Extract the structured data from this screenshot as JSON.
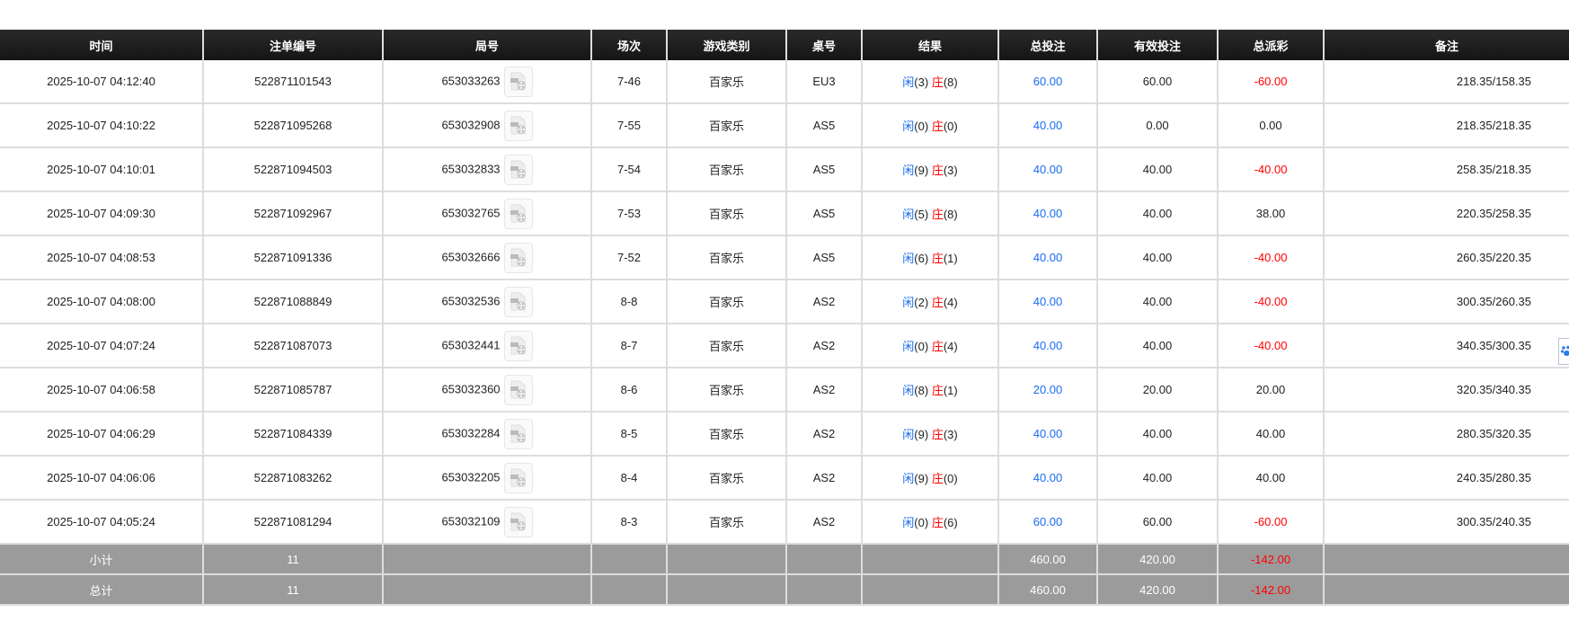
{
  "headers": [
    "时间",
    "注单编号",
    "局号",
    "场次",
    "游戏类别",
    "桌号",
    "结果",
    "总投注",
    "有效投注",
    "总派彩",
    "备注"
  ],
  "result_labels": {
    "player": "闲",
    "banker": "庄"
  },
  "rows": [
    {
      "time": "2025-10-07 04:12:40",
      "bet_id": "522871101543",
      "round": "653033263",
      "shoe": "7-46",
      "game": "百家乐",
      "table": "EU3",
      "player": "(3)",
      "banker": "(8)",
      "total_bet": "60.00",
      "valid_bet": "60.00",
      "payout": "-60.00",
      "payout_neg": true,
      "remark": "218.35/158.35"
    },
    {
      "time": "2025-10-07 04:10:22",
      "bet_id": "522871095268",
      "round": "653032908",
      "shoe": "7-55",
      "game": "百家乐",
      "table": "AS5",
      "player": "(0)",
      "banker": "(0)",
      "total_bet": "40.00",
      "valid_bet": "0.00",
      "payout": "0.00",
      "payout_neg": false,
      "remark": "218.35/218.35"
    },
    {
      "time": "2025-10-07 04:10:01",
      "bet_id": "522871094503",
      "round": "653032833",
      "shoe": "7-54",
      "game": "百家乐",
      "table": "AS5",
      "player": "(9)",
      "banker": "(3)",
      "total_bet": "40.00",
      "valid_bet": "40.00",
      "payout": "-40.00",
      "payout_neg": true,
      "remark": "258.35/218.35"
    },
    {
      "time": "2025-10-07 04:09:30",
      "bet_id": "522871092967",
      "round": "653032765",
      "shoe": "7-53",
      "game": "百家乐",
      "table": "AS5",
      "player": "(5)",
      "banker": "(8)",
      "total_bet": "40.00",
      "valid_bet": "40.00",
      "payout": "38.00",
      "payout_neg": false,
      "remark": "220.35/258.35"
    },
    {
      "time": "2025-10-07 04:08:53",
      "bet_id": "522871091336",
      "round": "653032666",
      "shoe": "7-52",
      "game": "百家乐",
      "table": "AS5",
      "player": "(6)",
      "banker": "(1)",
      "total_bet": "40.00",
      "valid_bet": "40.00",
      "payout": "-40.00",
      "payout_neg": true,
      "remark": "260.35/220.35"
    },
    {
      "time": "2025-10-07 04:08:00",
      "bet_id": "522871088849",
      "round": "653032536",
      "shoe": "8-8",
      "game": "百家乐",
      "table": "AS2",
      "player": "(2)",
      "banker": "(4)",
      "total_bet": "40.00",
      "valid_bet": "40.00",
      "payout": "-40.00",
      "payout_neg": true,
      "remark": "300.35/260.35"
    },
    {
      "time": "2025-10-07 04:07:24",
      "bet_id": "522871087073",
      "round": "653032441",
      "shoe": "8-7",
      "game": "百家乐",
      "table": "AS2",
      "player": "(0)",
      "banker": "(4)",
      "total_bet": "40.00",
      "valid_bet": "40.00",
      "payout": "-40.00",
      "payout_neg": true,
      "remark": "340.35/300.35"
    },
    {
      "time": "2025-10-07 04:06:58",
      "bet_id": "522871085787",
      "round": "653032360",
      "shoe": "8-6",
      "game": "百家乐",
      "table": "AS2",
      "player": "(8)",
      "banker": "(1)",
      "total_bet": "20.00",
      "valid_bet": "20.00",
      "payout": "20.00",
      "payout_neg": false,
      "remark": "320.35/340.35"
    },
    {
      "time": "2025-10-07 04:06:29",
      "bet_id": "522871084339",
      "round": "653032284",
      "shoe": "8-5",
      "game": "百家乐",
      "table": "AS2",
      "player": "(9)",
      "banker": "(3)",
      "total_bet": "40.00",
      "valid_bet": "40.00",
      "payout": "40.00",
      "payout_neg": false,
      "remark": "280.35/320.35"
    },
    {
      "time": "2025-10-07 04:06:06",
      "bet_id": "522871083262",
      "round": "653032205",
      "shoe": "8-4",
      "game": "百家乐",
      "table": "AS2",
      "player": "(9)",
      "banker": "(0)",
      "total_bet": "40.00",
      "valid_bet": "40.00",
      "payout": "40.00",
      "payout_neg": false,
      "remark": "240.35/280.35"
    },
    {
      "time": "2025-10-07 04:05:24",
      "bet_id": "522871081294",
      "round": "653032109",
      "shoe": "8-3",
      "game": "百家乐",
      "table": "AS2",
      "player": "(0)",
      "banker": "(6)",
      "total_bet": "60.00",
      "valid_bet": "60.00",
      "payout": "-60.00",
      "payout_neg": true,
      "remark": "300.35/240.35"
    }
  ],
  "subtotal": {
    "label": "小计",
    "count": "11",
    "total_bet": "460.00",
    "valid_bet": "420.00",
    "payout": "-142.00"
  },
  "total": {
    "label": "总计",
    "count": "11",
    "total_bet": "460.00",
    "valid_bet": "420.00",
    "payout": "-142.00"
  },
  "icons": {
    "replay": "video-replay-icon",
    "side": "paw-icon"
  },
  "colors": {
    "player": "#1a6cf0",
    "banker": "#ff0000",
    "negative": "#ff0000",
    "header_bg": "#1b1b1b",
    "summary_bg": "#9b9b9b"
  }
}
